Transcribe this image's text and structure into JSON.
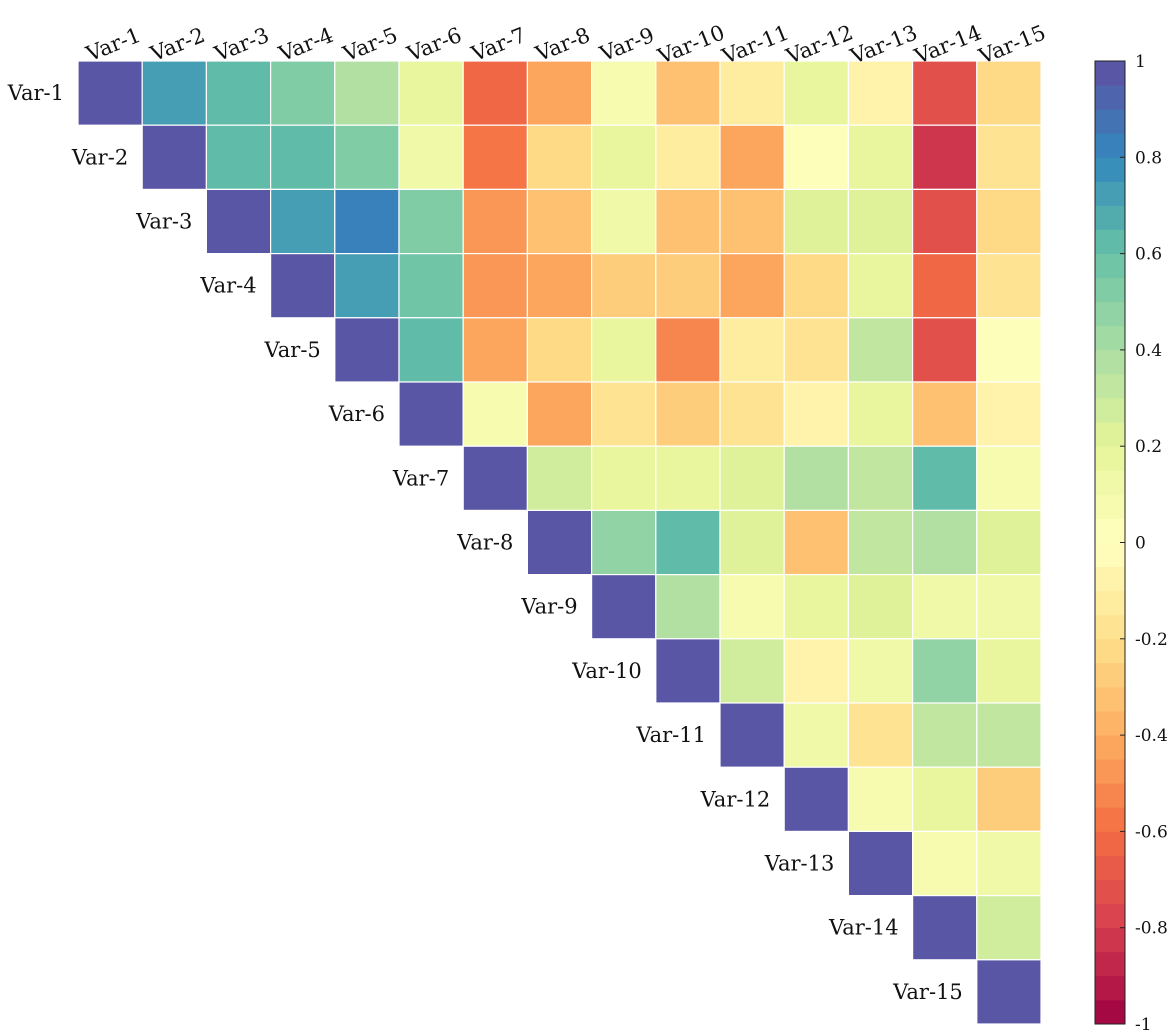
{
  "chart_data": {
    "type": "heatmap",
    "title": "",
    "variables": [
      "Var-1",
      "Var-2",
      "Var-3",
      "Var-4",
      "Var-5",
      "Var-6",
      "Var-7",
      "Var-8",
      "Var-9",
      "Var-10",
      "Var-11",
      "Var-12",
      "Var-13",
      "Var-14",
      "Var-15"
    ],
    "layout": "upper-triangle",
    "values": [
      [
        1,
        0.7,
        0.62,
        0.5,
        0.36,
        0.2,
        -0.62,
        -0.4,
        0.08,
        -0.3,
        -0.15,
        0.2,
        -0.1,
        -0.72,
        -0.25
      ],
      [
        null,
        1,
        0.62,
        0.62,
        0.5,
        0.15,
        -0.56,
        -0.22,
        0.18,
        -0.15,
        -0.42,
        0.04,
        0.2,
        -0.8,
        -0.2
      ],
      [
        null,
        null,
        1,
        0.7,
        0.8,
        0.5,
        -0.5,
        -0.3,
        0.12,
        -0.35,
        -0.35,
        0.22,
        0.22,
        -0.72,
        -0.25
      ],
      [
        null,
        null,
        null,
        1,
        0.7,
        0.58,
        -0.5,
        -0.4,
        -0.28,
        -0.28,
        -0.42,
        -0.22,
        0.2,
        -0.62,
        -0.2
      ],
      [
        null,
        null,
        null,
        null,
        1,
        0.62,
        -0.4,
        -0.22,
        0.16,
        -0.52,
        -0.12,
        -0.16,
        0.3,
        -0.72,
        0.04
      ],
      [
        null,
        null,
        null,
        null,
        null,
        1,
        0.08,
        -0.42,
        -0.2,
        -0.28,
        -0.18,
        -0.06,
        0.18,
        -0.35,
        -0.1
      ],
      [
        null,
        null,
        null,
        null,
        null,
        null,
        1,
        0.28,
        0.2,
        0.2,
        0.24,
        0.36,
        0.3,
        0.6,
        0.08
      ],
      [
        null,
        null,
        null,
        null,
        null,
        null,
        null,
        1,
        0.46,
        0.6,
        0.22,
        -0.3,
        0.3,
        0.36,
        0.22
      ],
      [
        null,
        null,
        null,
        null,
        null,
        null,
        null,
        null,
        1,
        0.36,
        0.08,
        0.2,
        0.24,
        0.12,
        0.14
      ],
      [
        null,
        null,
        null,
        null,
        null,
        null,
        null,
        null,
        null,
        1,
        0.26,
        -0.1,
        0.1,
        0.46,
        0.16
      ],
      [
        null,
        null,
        null,
        null,
        null,
        null,
        null,
        null,
        null,
        null,
        1,
        0.14,
        -0.18,
        0.3,
        0.34
      ],
      [
        null,
        null,
        null,
        null,
        null,
        null,
        null,
        null,
        null,
        null,
        null,
        1,
        0.06,
        0.16,
        -0.26
      ],
      [
        null,
        null,
        null,
        null,
        null,
        null,
        null,
        null,
        null,
        null,
        null,
        null,
        1,
        0.06,
        0.14
      ],
      [
        null,
        null,
        null,
        null,
        null,
        null,
        null,
        null,
        null,
        null,
        null,
        null,
        null,
        1,
        0.26
      ],
      [
        null,
        null,
        null,
        null,
        null,
        null,
        null,
        null,
        null,
        null,
        null,
        null,
        null,
        null,
        1
      ]
    ],
    "colorbar": {
      "min": -1,
      "max": 1,
      "levels": 40,
      "tick_values": [
        -1,
        -0.8,
        -0.6,
        -0.4,
        -0.2,
        0,
        0.2,
        0.4,
        0.6,
        0.8,
        1
      ],
      "tick_labels": [
        "-1",
        "-0.8",
        "-0.6",
        "-0.4",
        "-0.2",
        "0",
        "0.2",
        "0.4",
        "0.6",
        "0.8",
        "1"
      ]
    },
    "colormap": {
      "name": "spectral",
      "stops": [
        [
          -1.0,
          "#9e0142"
        ],
        [
          -0.8,
          "#d53e4f"
        ],
        [
          -0.6,
          "#f46d43"
        ],
        [
          -0.4,
          "#fdae61"
        ],
        [
          -0.2,
          "#fee08b"
        ],
        [
          0.0,
          "#ffffbf"
        ],
        [
          0.2,
          "#e6f598"
        ],
        [
          0.4,
          "#abdda4"
        ],
        [
          0.6,
          "#66c2a5"
        ],
        [
          0.8,
          "#3288bd"
        ],
        [
          1.0,
          "#5e4fa2"
        ]
      ]
    },
    "grid_line_color": "#ffffff"
  }
}
